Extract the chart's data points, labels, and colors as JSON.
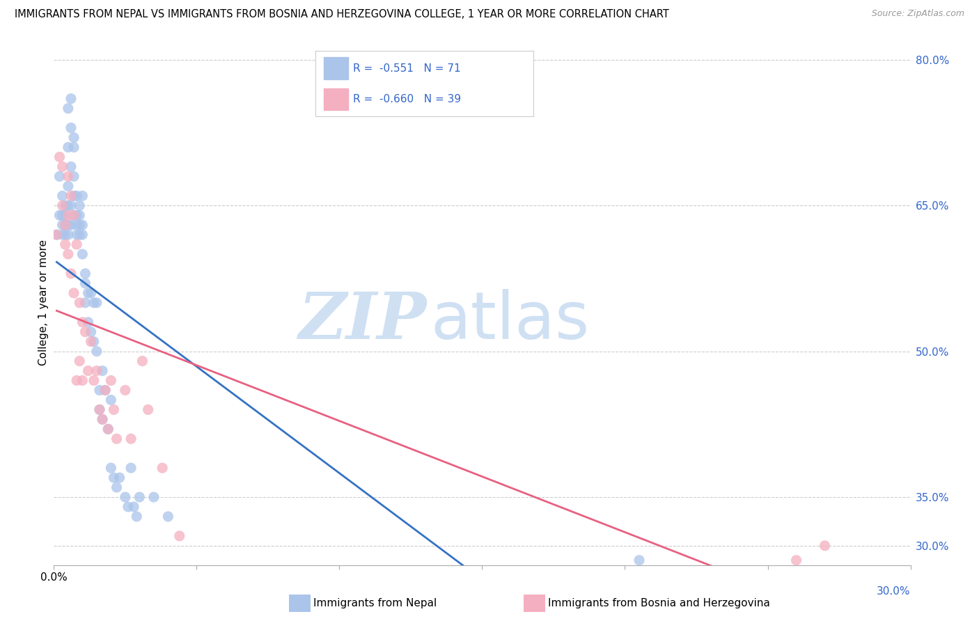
{
  "title": "IMMIGRANTS FROM NEPAL VS IMMIGRANTS FROM BOSNIA AND HERZEGOVINA COLLEGE, 1 YEAR OR MORE CORRELATION CHART",
  "source": "Source: ZipAtlas.com",
  "ylabel": "College, 1 year or more",
  "xlim": [
    0.0,
    0.3
  ],
  "ylim": [
    0.28,
    0.82
  ],
  "nepal_R": -0.551,
  "nepal_N": 71,
  "bosnia_R": -0.66,
  "bosnia_N": 39,
  "nepal_color": "#aac4ea",
  "bosnia_color": "#f4afc0",
  "nepal_line_color": "#3472c4",
  "bosnia_line_color": "#e86080",
  "legend_text_color": "#3366cc",
  "right_axis_color": "#3366cc",
  "nepal_x": [
    0.001,
    0.002,
    0.002,
    0.003,
    0.003,
    0.003,
    0.003,
    0.004,
    0.004,
    0.004,
    0.004,
    0.005,
    0.005,
    0.005,
    0.005,
    0.005,
    0.005,
    0.006,
    0.006,
    0.006,
    0.006,
    0.006,
    0.007,
    0.007,
    0.007,
    0.007,
    0.007,
    0.008,
    0.008,
    0.008,
    0.008,
    0.009,
    0.009,
    0.009,
    0.009,
    0.01,
    0.01,
    0.01,
    0.01,
    0.011,
    0.011,
    0.011,
    0.012,
    0.012,
    0.013,
    0.013,
    0.014,
    0.014,
    0.015,
    0.015,
    0.016,
    0.016,
    0.017,
    0.017,
    0.018,
    0.019,
    0.02,
    0.02,
    0.021,
    0.022,
    0.023,
    0.025,
    0.026,
    0.027,
    0.028,
    0.029,
    0.03,
    0.035,
    0.04,
    0.205,
    0.21
  ],
  "nepal_y": [
    0.62,
    0.68,
    0.64,
    0.66,
    0.64,
    0.63,
    0.62,
    0.65,
    0.64,
    0.63,
    0.62,
    0.75,
    0.71,
    0.67,
    0.65,
    0.63,
    0.62,
    0.76,
    0.73,
    0.69,
    0.65,
    0.63,
    0.72,
    0.71,
    0.68,
    0.66,
    0.64,
    0.66,
    0.64,
    0.63,
    0.62,
    0.65,
    0.64,
    0.63,
    0.62,
    0.66,
    0.63,
    0.62,
    0.6,
    0.58,
    0.57,
    0.55,
    0.56,
    0.53,
    0.56,
    0.52,
    0.55,
    0.51,
    0.55,
    0.5,
    0.46,
    0.44,
    0.48,
    0.43,
    0.46,
    0.42,
    0.45,
    0.38,
    0.37,
    0.36,
    0.37,
    0.35,
    0.34,
    0.38,
    0.34,
    0.33,
    0.35,
    0.35,
    0.33,
    0.285,
    0.27
  ],
  "bosnia_x": [
    0.001,
    0.002,
    0.003,
    0.003,
    0.004,
    0.004,
    0.005,
    0.005,
    0.005,
    0.006,
    0.006,
    0.007,
    0.007,
    0.008,
    0.008,
    0.009,
    0.009,
    0.01,
    0.01,
    0.011,
    0.012,
    0.013,
    0.014,
    0.015,
    0.016,
    0.017,
    0.018,
    0.019,
    0.02,
    0.021,
    0.022,
    0.025,
    0.027,
    0.031,
    0.033,
    0.038,
    0.044,
    0.26,
    0.27
  ],
  "bosnia_y": [
    0.62,
    0.7,
    0.69,
    0.65,
    0.63,
    0.61,
    0.68,
    0.64,
    0.6,
    0.66,
    0.58,
    0.64,
    0.56,
    0.61,
    0.47,
    0.55,
    0.49,
    0.53,
    0.47,
    0.52,
    0.48,
    0.51,
    0.47,
    0.48,
    0.44,
    0.43,
    0.46,
    0.42,
    0.47,
    0.44,
    0.41,
    0.46,
    0.41,
    0.49,
    0.44,
    0.38,
    0.31,
    0.285,
    0.3
  ],
  "grid_color": "#cccccc",
  "background_color": "#ffffff",
  "nepal_line_intercept": 0.645,
  "nepal_line_slope": -1.65,
  "bosnia_line_intercept": 0.62,
  "bosnia_line_slope": -1.12
}
